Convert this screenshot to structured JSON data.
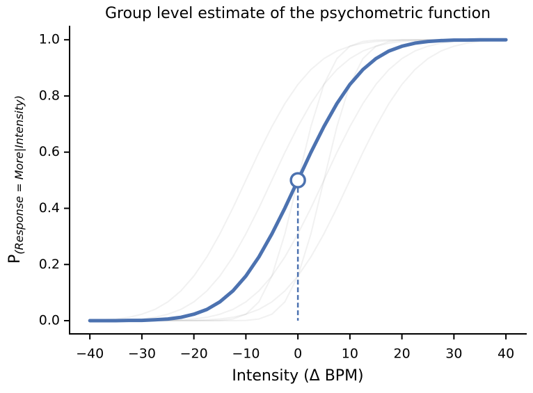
{
  "chart_data": {
    "type": "line",
    "title": "Group level estimate of the psychometric function",
    "xlabel": "Intensity (Δ BPM)",
    "ylabel": {
      "main": "P",
      "sub": "(Response = More|Intensity)"
    },
    "xlim": [
      -43.9,
      44
    ],
    "ylim": [
      -0.047,
      1.05
    ],
    "xticks": [
      {
        "value": -40,
        "label": "−40"
      },
      {
        "value": -30,
        "label": "−30"
      },
      {
        "value": -20,
        "label": "−20"
      },
      {
        "value": -10,
        "label": "−10"
      },
      0,
      10,
      20,
      30,
      40
    ],
    "yticks": [
      {
        "value": 0,
        "label": "0.0"
      },
      {
        "value": 0.2,
        "label": "0.2"
      },
      {
        "value": 0.4,
        "label": "0.4"
      },
      {
        "value": 0.6,
        "label": "0.6"
      },
      {
        "value": 0.8,
        "label": "0.8"
      },
      {
        "value": 1,
        "label": "1.0"
      }
    ],
    "x": [
      -40,
      -37.5,
      -35,
      -32.5,
      -30,
      -27.5,
      -25,
      -22.5,
      -20,
      -17.5,
      -15,
      -12.5,
      -10,
      -7.5,
      -5,
      -2.5,
      0,
      2.5,
      5,
      7.5,
      10,
      12.5,
      15,
      17.5,
      20,
      22.5,
      25,
      27.5,
      30,
      32.5,
      35,
      37.5,
      40
    ],
    "series": [
      {
        "color": "rgba(140,140,140,0.12)",
        "width": 2,
        "values": [
          0,
          0,
          0,
          0,
          0,
          0.001,
          0.001,
          0.003,
          0.006,
          0.012,
          0.023,
          0.04,
          0.067,
          0.106,
          0.159,
          0.227,
          0.309,
          0.401,
          0.5,
          0.599,
          0.691,
          0.773,
          0.841,
          0.894,
          0.933,
          0.96,
          0.977,
          0.988,
          0.994,
          0.997,
          0.999,
          0.999,
          1
        ]
      },
      {
        "color": "rgba(140,140,140,0.12)",
        "width": 2,
        "values": [
          0,
          0.001,
          0.001,
          0.003,
          0.006,
          0.012,
          0.023,
          0.04,
          0.067,
          0.106,
          0.159,
          0.227,
          0.309,
          0.401,
          0.5,
          0.599,
          0.691,
          0.773,
          0.841,
          0.894,
          0.933,
          0.96,
          0.977,
          0.988,
          0.994,
          0.997,
          0.999,
          0.999,
          1,
          1,
          1,
          1,
          1
        ]
      },
      {
        "color": "rgba(140,140,140,0.12)",
        "width": 2,
        "values": [
          0,
          0,
          0,
          0,
          0,
          0,
          0,
          0.001,
          0.001,
          0.003,
          0.006,
          0.012,
          0.023,
          0.04,
          0.067,
          0.106,
          0.159,
          0.227,
          0.309,
          0.401,
          0.5,
          0.599,
          0.691,
          0.773,
          0.841,
          0.894,
          0.933,
          0.96,
          0.977,
          0.988,
          0.994,
          0.997,
          0.999
        ]
      },
      {
        "color": "rgba(140,140,140,0.12)",
        "width": 2,
        "values": [
          0.001,
          0.003,
          0.006,
          0.012,
          0.023,
          0.04,
          0.067,
          0.106,
          0.159,
          0.227,
          0.309,
          0.401,
          0.5,
          0.599,
          0.691,
          0.773,
          0.841,
          0.894,
          0.933,
          0.96,
          0.977,
          0.988,
          0.994,
          0.997,
          0.999,
          0.999,
          1,
          1,
          1,
          1,
          1,
          1,
          1
        ]
      },
      {
        "color": "rgba(140,140,140,0.12)",
        "width": 2,
        "values": [
          0,
          0,
          0,
          0,
          0,
          0,
          0,
          0,
          0,
          0,
          0.001,
          0.006,
          0.023,
          0.067,
          0.159,
          0.309,
          0.5,
          0.691,
          0.841,
          0.933,
          0.977,
          0.994,
          0.999,
          1,
          1,
          1,
          1,
          1,
          1,
          1,
          1,
          1,
          1
        ]
      },
      {
        "color": "rgba(140,140,140,0.12)",
        "width": 2,
        "values": [
          0,
          0,
          0,
          0,
          0,
          0,
          0,
          0,
          0,
          0,
          0,
          0,
          0.001,
          0.006,
          0.023,
          0.067,
          0.159,
          0.309,
          0.5,
          0.691,
          0.841,
          0.933,
          0.977,
          0.994,
          0.999,
          1,
          1,
          1,
          1,
          1,
          1,
          1,
          1
        ]
      },
      {
        "color": "#4c72b0",
        "width": 5,
        "values": [
          0,
          0,
          0,
          0.001,
          0.001,
          0.003,
          0.006,
          0.012,
          0.023,
          0.04,
          0.067,
          0.106,
          0.159,
          0.227,
          0.309,
          0.401,
          0.5,
          0.599,
          0.691,
          0.773,
          0.841,
          0.894,
          0.933,
          0.96,
          0.977,
          0.988,
          0.994,
          0.997,
          0.999,
          0.999,
          1,
          1,
          1
        ]
      }
    ],
    "threshold": {
      "x": 0,
      "y": 0.5,
      "color": "#4c72b0"
    }
  }
}
